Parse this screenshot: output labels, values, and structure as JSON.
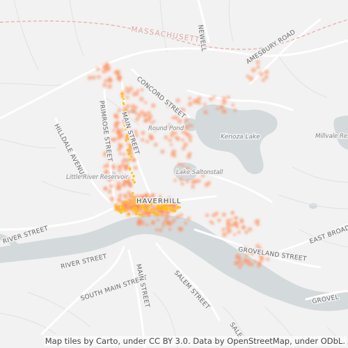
{
  "map": {
    "colors": {
      "land": "#f2f2f2",
      "water": "#d4dadc",
      "road": "#ffffff",
      "minor_road": "#e6e6e6",
      "state_line": "#e8b4ae",
      "point": "#ff8c5a",
      "dense": "#ffc107"
    },
    "labels": {
      "state": "MASSACHUSETTS",
      "city": "HAVERHILL",
      "newell": "NEWELL",
      "amesbury_road": "AMESBURY ROAD",
      "concord_street": "CONCORD STREET",
      "round_pond": "Round Pond",
      "kenoza_lake": "Kenoza Lake",
      "millvale": "Millvale Reser",
      "hilldale_avenue": "HILLDALE AVENUE",
      "primrose_street": "PRIMROSE STREET",
      "main_street": "MAIN STREET",
      "little_river_reservoir": "Little River Reservoir",
      "lake_saltonstall": "Lake Saltonstall",
      "river_street": "RIVER STREET",
      "groveland_street": "GROVELAND STREET",
      "east_broadway": "EAST BROADWAY",
      "south_main_street": "SOUTH MAIN STREET",
      "salem_street": "SALEM STREET",
      "main_street_south": "MAIN STREET",
      "groveland": "GROVEL",
      "salem_street_bottom": "SALE"
    },
    "attribution": "Map tiles by Carto, under CC BY 3.0. Data by OpenStreetMap, under ODbL."
  }
}
